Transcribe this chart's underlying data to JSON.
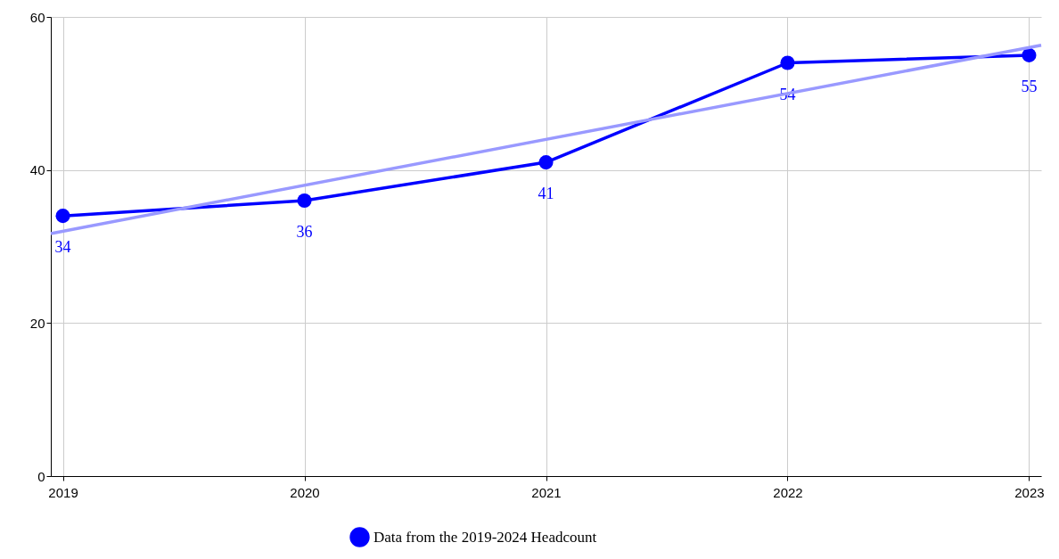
{
  "chart_data": {
    "type": "line",
    "x": [
      2019,
      2020,
      2021,
      2022,
      2023
    ],
    "series": [
      {
        "name": "Data from the 2019-2024 Headcount",
        "color": "#0000ff",
        "values": [
          34,
          36,
          41,
          54,
          55
        ],
        "marker": "circle",
        "value_labels": [
          "34",
          "36",
          "41",
          "54",
          "55"
        ]
      },
      {
        "type": "line",
        "color": "#9999ff",
        "x": [
          2018.95,
          2023.05
        ],
        "values": [
          31.7,
          56.3
        ],
        "marker": "none"
      }
    ],
    "xlim": [
      2018.95,
      2023.05
    ],
    "xticks": [
      2019,
      2020,
      2021,
      2022,
      2023
    ],
    "ylim": [
      0,
      60
    ],
    "yticks": [
      0,
      20,
      40,
      60
    ],
    "grid": true,
    "legend": "bottom"
  }
}
